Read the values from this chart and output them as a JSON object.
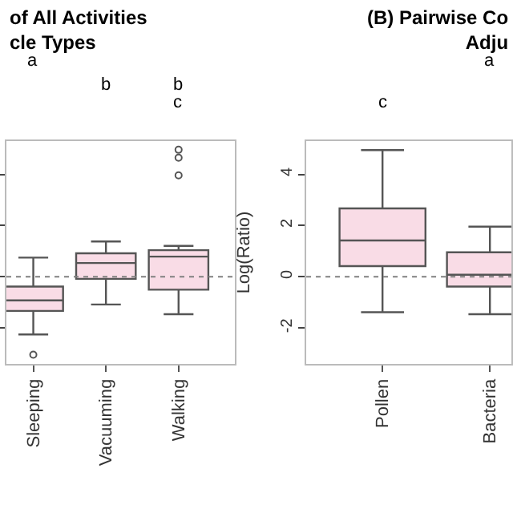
{
  "chart_data": [
    {
      "type": "box",
      "title": "of All Activities\ncle Types",
      "categories": [
        "Sleeping",
        "Vacuuming",
        "Walking"
      ],
      "ylim": [
        -3.4,
        5.3
      ],
      "yticks": [
        -2,
        0,
        2,
        4
      ],
      "tick_labels": "x",
      "marker": "circle",
      "series": [
        {
          "color": "#f9dce6",
          "boxes": [
            {
              "low": -2.25,
              "q1": -1.33,
              "median": -0.92,
              "q3": -0.38,
              "high": 0.75,
              "outliers": [
                -3.04
              ]
            },
            {
              "low": -1.08,
              "q1": -0.08,
              "median": 0.54,
              "q3": 0.92,
              "high": 1.38
            },
            {
              "low": -1.46,
              "q1": -0.5,
              "median": 0.79,
              "q3": 1.04,
              "high": 1.21,
              "outliers": [
                4.96,
                4.65,
                3.96
              ]
            }
          ]
        }
      ],
      "ref_lines": [
        {
          "axis": "y",
          "value": 0,
          "line_style": "dotted",
          "color": "#808080"
        }
      ],
      "annotations": [
        "a",
        "b",
        "b",
        "c"
      ]
    },
    {
      "type": "box",
      "title": "(B) Pairwise Co\nAdju",
      "ylabel": "Log(Ratio)",
      "categories": [
        "Pollen",
        "Bacteria"
      ],
      "ylim": [
        -3.4,
        5.3
      ],
      "yticks": [
        -2,
        0,
        2,
        4
      ],
      "marker": "circle",
      "series": [
        {
          "color": "#f9dce6",
          "boxes": [
            {
              "low": -1.38,
              "q1": 0.42,
              "median": 1.42,
              "q3": 2.67,
              "high": 4.95
            },
            {
              "low": -1.46,
              "q1": -0.38,
              "median": 0.08,
              "q3": 0.96,
              "high": 1.96
            }
          ]
        }
      ],
      "ref_lines": [
        {
          "axis": "y",
          "value": 0,
          "line_style": "dotted",
          "color": "#808080"
        }
      ],
      "annotations": [
        "c",
        "a"
      ]
    }
  ]
}
